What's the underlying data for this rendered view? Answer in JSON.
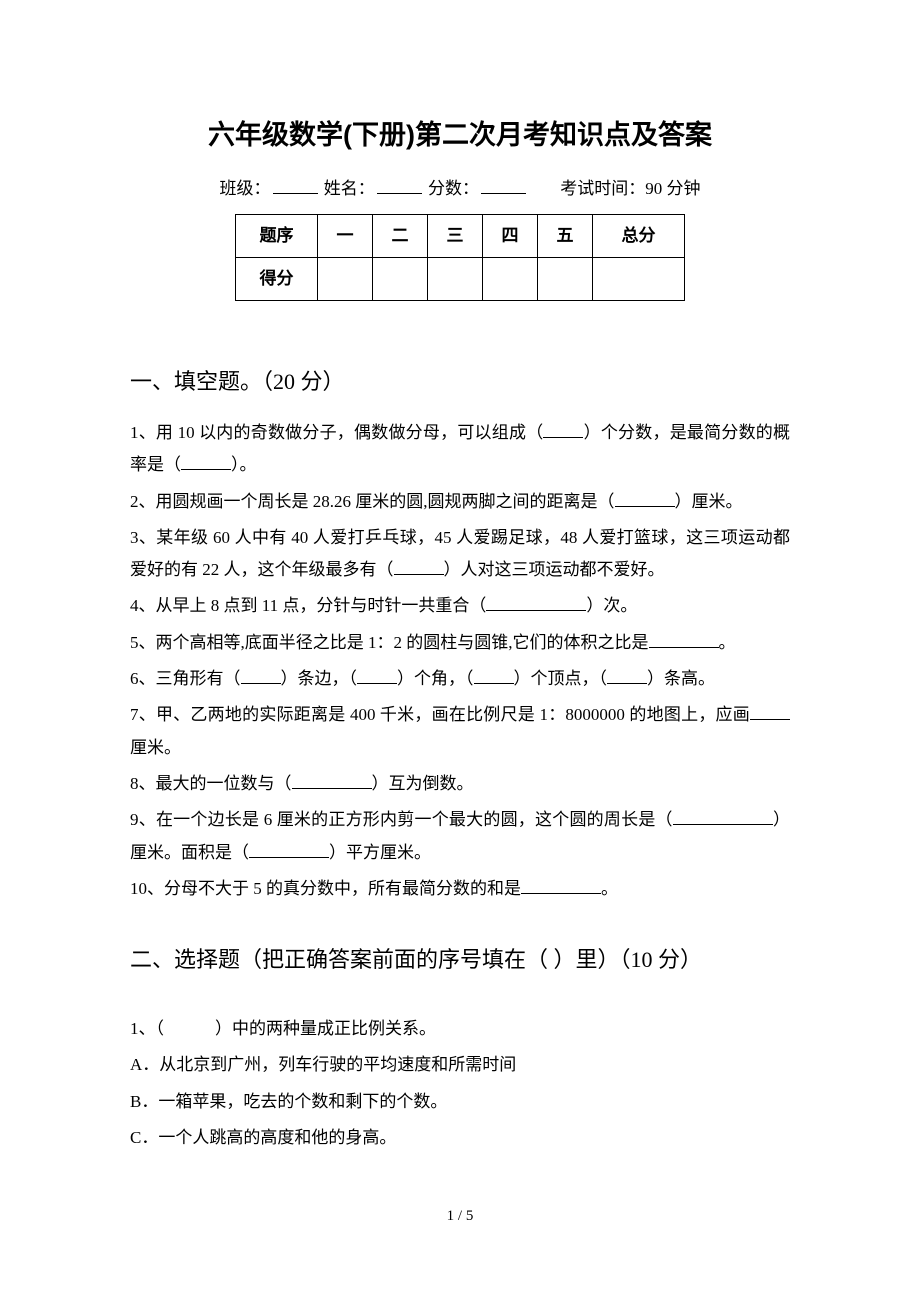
{
  "title": "六年级数学(下册)第二次月考知识点及答案",
  "header": {
    "class_label": "班级：",
    "name_label": "姓名：",
    "score_label": "分数：",
    "time_label": "考试时间：90 分钟"
  },
  "score_table": {
    "headers": [
      "题序",
      "一",
      "二",
      "三",
      "四",
      "五",
      "总分"
    ],
    "row_label": "得分"
  },
  "section1": {
    "title": "一、填空题。（20 分）",
    "questions": [
      {
        "parts": [
          "1、用 10 以内的奇数做分子，偶数做分母，可以组成（",
          "）个分数，是最简分数的概率是（",
          "）。"
        ],
        "blanks": [
          "w40",
          "w50"
        ]
      },
      {
        "parts": [
          "2、用圆规画一个周长是 28.26 厘米的圆,圆规两脚之间的距离是（",
          "）厘米。"
        ],
        "blanks": [
          "w60"
        ]
      },
      {
        "parts": [
          "3、某年级 60 人中有 40 人爱打乒乓球，45 人爱踢足球，48 人爱打篮球，这三项运动都爱好的有 22 人，这个年级最多有（",
          "）人对这三项运动都不爱好。"
        ],
        "blanks": [
          "w50"
        ]
      },
      {
        "parts": [
          "4、从早上 8 点到 11 点，分针与时针一共重合（",
          "）次。"
        ],
        "blanks": [
          "w100"
        ]
      },
      {
        "parts": [
          "5、两个高相等,底面半径之比是 1：2 的圆柱与圆锥,它们的体积之比是",
          "。"
        ],
        "blanks": [
          "w70"
        ]
      },
      {
        "parts": [
          "6、三角形有（",
          "）条边，（",
          "）个角，（",
          "）个顶点，（",
          "）条高。"
        ],
        "blanks": [
          "w40",
          "w40",
          "w40",
          "w40"
        ]
      },
      {
        "parts": [
          "7、甲、乙两地的实际距离是 400 千米，画在比例尺是 1：8000000 的地图上，应画",
          "厘米。"
        ],
        "blanks": [
          "w40"
        ]
      },
      {
        "parts": [
          "8、最大的一位数与（",
          "）互为倒数。"
        ],
        "blanks": [
          "w80"
        ]
      },
      {
        "parts": [
          "9、在一个边长是 6 厘米的正方形内剪一个最大的圆，这个圆的周长是（",
          "）厘米。面积是（",
          "）平方厘米。"
        ],
        "blanks": [
          "w100",
          "w80"
        ]
      },
      {
        "parts": [
          "10、分母不大于 5 的真分数中，所有最简分数的和是",
          "。"
        ],
        "blanks": [
          "w80"
        ]
      }
    ]
  },
  "section2": {
    "title": "二、选择题（把正确答案前面的序号填在（ ）里）（10 分）",
    "q1_text": "1、（　　　）中的两种量成正比例关系。",
    "options": [
      "A．从北京到广州，列车行驶的平均速度和所需时间",
      "B．一箱苹果，吃去的个数和剩下的个数。",
      "C．一个人跳高的高度和他的身高。"
    ]
  },
  "footer": "1 / 5"
}
